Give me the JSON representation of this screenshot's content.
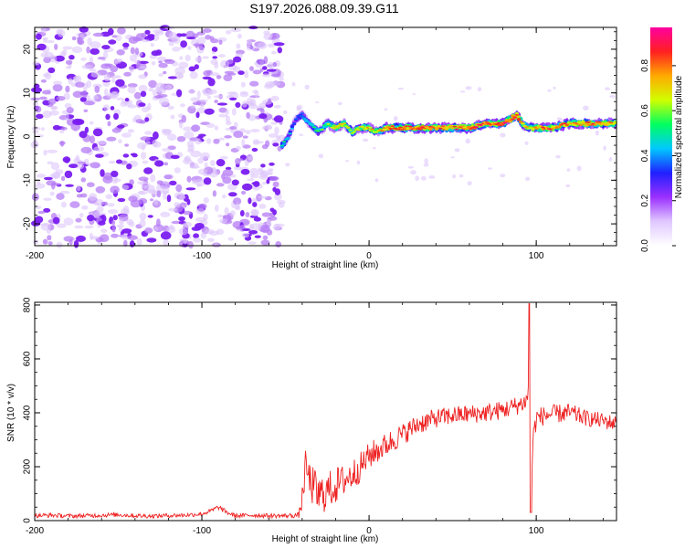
{
  "title": "S197.2026.088.09.39.G11",
  "chart_data": [
    {
      "type": "heatmap",
      "name": "spectrogram",
      "xlabel": "Height of straight line (km)",
      "ylabel": "Frequency (Hz)",
      "xlim": [
        -200,
        148
      ],
      "ylim": [
        -25,
        25
      ],
      "xticks": [
        -200,
        -100,
        0,
        100
      ],
      "yticks": [
        -20,
        -10,
        0,
        10,
        20
      ],
      "colorbar": {
        "label": "Normalized spectral amplitude",
        "range": [
          0.0,
          0.97
        ],
        "ticks": [
          0.0,
          0.2,
          0.4,
          0.6,
          0.8
        ],
        "colors": [
          "#ffffff",
          "#e0c8ff",
          "#9b30ff",
          "#2020ff",
          "#00c8ff",
          "#00ff60",
          "#d0ff00",
          "#ffaa00",
          "#ff2020",
          "#ff00a0"
        ]
      },
      "noise_region_x": [
        -200,
        -52
      ],
      "signal_ridge": {
        "x": [
          -52,
          -48,
          -44,
          -40,
          -36,
          -30,
          -25,
          -20,
          -15,
          -10,
          -5,
          0,
          5,
          10,
          20,
          30,
          40,
          50,
          60,
          70,
          80,
          85,
          88,
          90,
          92,
          95,
          100,
          110,
          120,
          130,
          140,
          148
        ],
        "freq": [
          -2,
          0,
          4,
          5,
          3,
          1,
          3,
          2,
          3,
          1,
          2,
          2,
          1,
          2,
          2,
          2,
          2,
          2,
          2,
          3,
          3,
          4,
          5,
          4,
          3,
          2,
          2,
          2,
          3,
          3,
          3,
          3
        ],
        "amplitude": [
          0.5,
          0.45,
          0.35,
          0.4,
          0.5,
          0.55,
          0.6,
          0.65,
          0.7,
          0.65,
          0.7,
          0.75,
          0.7,
          0.8,
          0.85,
          0.88,
          0.8,
          0.82,
          0.88,
          0.85,
          0.88,
          0.9,
          0.97,
          0.9,
          0.8,
          0.7,
          0.8,
          0.85,
          0.82,
          0.85,
          0.8,
          0.78
        ]
      }
    },
    {
      "type": "line",
      "name": "snr",
      "xlabel": "Height of straight line (km)",
      "ylabel": "SNR (10 * v/v)",
      "xlim": [
        -200,
        148
      ],
      "ylim": [
        0,
        810
      ],
      "xticks": [
        -200,
        -100,
        0,
        100
      ],
      "yticks": [
        0,
        200,
        400,
        600,
        800
      ],
      "color": "#ee2222",
      "series": [
        {
          "name": "SNR",
          "x": [
            -200,
            -190,
            -180,
            -170,
            -160,
            -150,
            -140,
            -130,
            -120,
            -110,
            -100,
            -95,
            -90,
            -85,
            -80,
            -70,
            -60,
            -50,
            -42,
            -40,
            -38,
            -35,
            -32,
            -30,
            -25,
            -20,
            -15,
            -10,
            -5,
            0,
            5,
            10,
            15,
            20,
            25,
            30,
            40,
            50,
            60,
            70,
            80,
            85,
            90,
            93,
            95,
            96,
            97,
            98,
            100,
            105,
            110,
            120,
            130,
            140,
            148
          ],
          "y": [
            18,
            20,
            17,
            18,
            20,
            22,
            18,
            17,
            19,
            20,
            25,
            35,
            50,
            30,
            18,
            20,
            18,
            18,
            20,
            80,
            200,
            140,
            110,
            90,
            110,
            130,
            150,
            170,
            200,
            240,
            260,
            280,
            300,
            320,
            340,
            360,
            380,
            390,
            395,
            400,
            410,
            420,
            430,
            440,
            450,
            780,
            60,
            300,
            380,
            390,
            395,
            400,
            380,
            370,
            360
          ],
          "noise_amplitude": [
            8,
            8,
            8,
            8,
            8,
            8,
            8,
            8,
            8,
            8,
            8,
            8,
            10,
            8,
            8,
            8,
            8,
            8,
            10,
            50,
            60,
            70,
            80,
            80,
            70,
            70,
            60,
            60,
            55,
            50,
            50,
            45,
            45,
            40,
            40,
            40,
            35,
            35,
            35,
            35,
            35,
            35,
            35,
            35,
            40,
            20,
            20,
            40,
            40,
            35,
            35,
            35,
            30,
            30,
            30
          ]
        }
      ]
    }
  ]
}
